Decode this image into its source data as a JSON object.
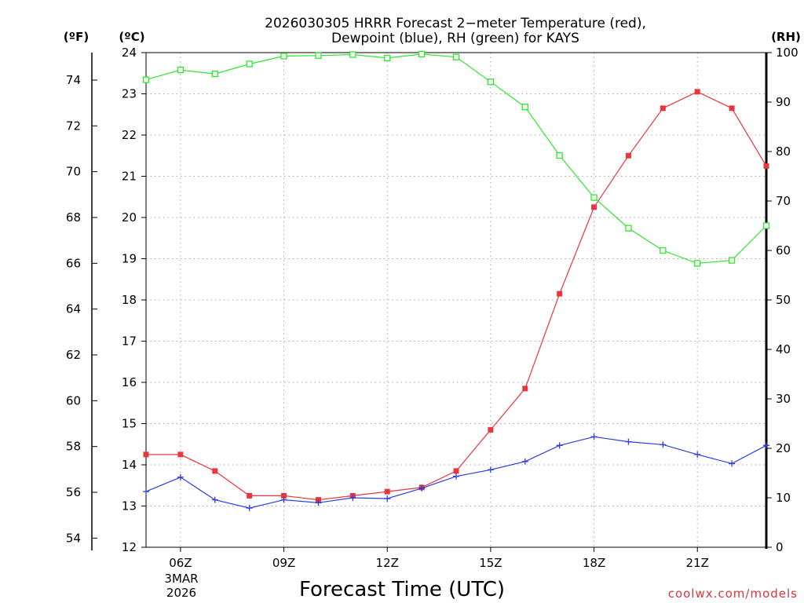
{
  "chart_data": {
    "type": "line",
    "title_line1": "2026030305 HRRR Forecast 2−meter Temperature (red),",
    "title_line2": "Dewpoint (blue), RH (green) for KAYS",
    "xlabel": "Forecast Time (UTC)",
    "credit": "coolwx.com/models",
    "unit_f": "(ºF)",
    "unit_c": "(ºC)",
    "unit_rh": "(RH)",
    "date_label_month": "3MAR",
    "date_label_year": "2026",
    "x_hours": [
      5,
      6,
      7,
      8,
      9,
      10,
      11,
      12,
      13,
      14,
      15,
      16,
      17,
      18,
      19,
      20,
      21,
      22,
      23
    ],
    "x_range": [
      5,
      23
    ],
    "x_ticks": [
      {
        "hour": 6,
        "label": "06Z"
      },
      {
        "hour": 9,
        "label": "09Z"
      },
      {
        "hour": 12,
        "label": "12Z"
      },
      {
        "hour": 15,
        "label": "15Z"
      },
      {
        "hour": 18,
        "label": "18Z"
      },
      {
        "hour": 21,
        "label": "21Z"
      }
    ],
    "celsius_range": [
      12,
      24
    ],
    "celsius_ticks": [
      12,
      13,
      14,
      15,
      16,
      17,
      18,
      19,
      20,
      21,
      22,
      23,
      24
    ],
    "fahrenheit_ticks": [
      54,
      56,
      58,
      60,
      62,
      64,
      66,
      68,
      70,
      72,
      74
    ],
    "rh_range": [
      0,
      100
    ],
    "rh_ticks": [
      0,
      10,
      20,
      30,
      40,
      50,
      60,
      70,
      80,
      90,
      100
    ],
    "series": [
      {
        "name": "Temperature",
        "color": "#e8363c",
        "axis": "celsius",
        "marker": "filled-square",
        "values": [
          14.25,
          14.25,
          13.85,
          13.25,
          13.25,
          13.15,
          13.25,
          13.35,
          13.45,
          13.85,
          14.85,
          15.85,
          18.15,
          20.25,
          21.5,
          22.65,
          23.05,
          22.65,
          21.25
        ]
      },
      {
        "name": "Dewpoint",
        "color": "#2a3ee6",
        "axis": "celsius",
        "marker": "plus",
        "values": [
          13.35,
          13.7,
          13.15,
          12.95,
          13.15,
          13.08,
          13.2,
          13.18,
          13.43,
          13.72,
          13.88,
          14.08,
          14.47,
          14.68,
          14.56,
          14.49,
          14.25,
          14.03,
          14.47
        ]
      },
      {
        "name": "RH",
        "color": "#2ee62e",
        "axis": "rh",
        "marker": "open-square",
        "values": [
          94.5,
          96.5,
          95.7,
          97.7,
          99.3,
          99.4,
          99.6,
          98.9,
          99.7,
          99.1,
          94.1,
          89.0,
          79.2,
          70.7,
          64.5,
          60.0,
          57.4,
          58.0,
          65.0
        ]
      }
    ]
  }
}
